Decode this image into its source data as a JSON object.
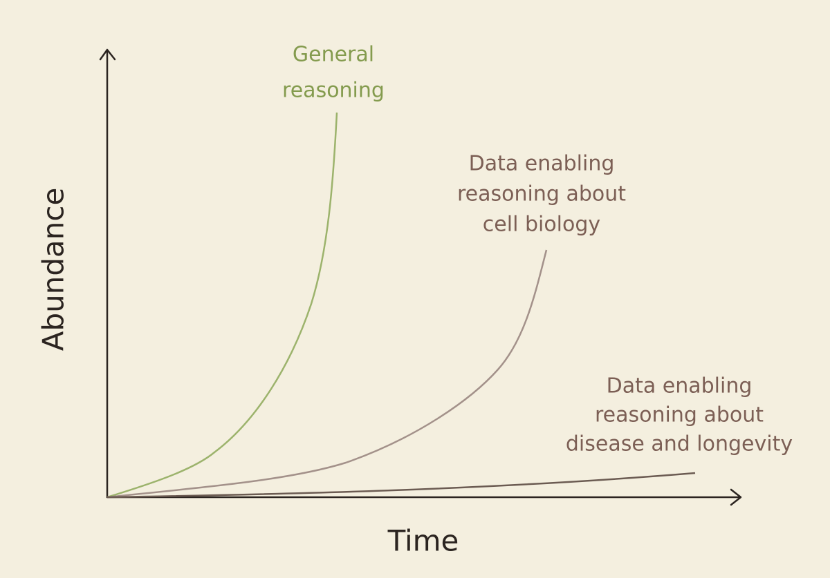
{
  "axes": {
    "y_label": "Abundance",
    "x_label": "Time"
  },
  "curves": [
    {
      "label": [
        "General",
        "reasoning"
      ]
    },
    {
      "label": [
        "Data enabling",
        "reasoning about",
        "cell biology"
      ]
    },
    {
      "label": [
        "Data enabling",
        "reasoning about",
        "disease and longevity"
      ]
    }
  ]
}
